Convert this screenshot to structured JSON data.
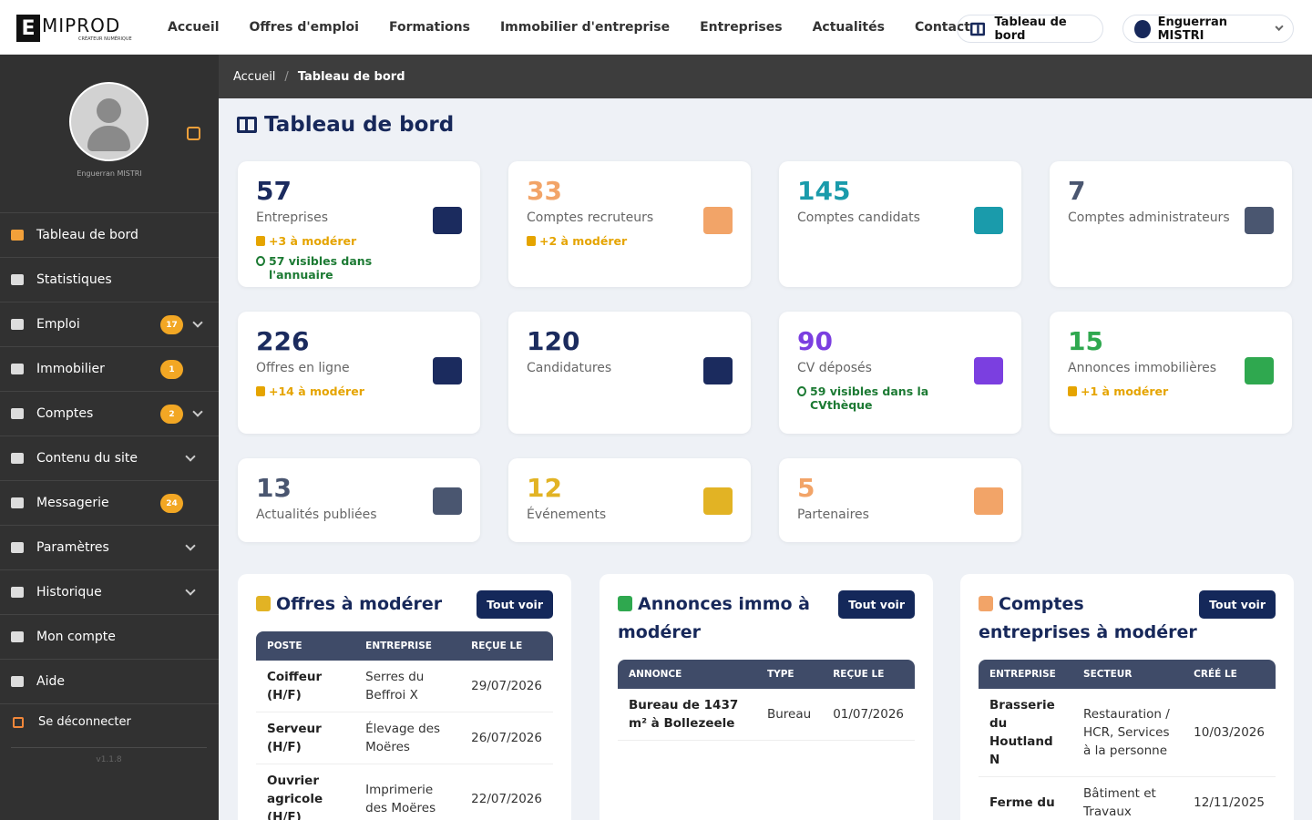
{
  "header": {
    "logo": {
      "letter": "E",
      "rest": "MIPROD",
      "tagline": "CRÉATEUR NUMÉRIQUE"
    },
    "nav": [
      "Accueil",
      "Offres d'emploi",
      "Formations",
      "Immobilier d'entreprise",
      "Entreprises",
      "Actualités",
      "Contact"
    ],
    "dashboard_button": "Tableau de bord",
    "user": "Enguerran MISTRI"
  },
  "sidebar": {
    "user_name": "Enguerran MISTRI",
    "menu": [
      {
        "label": "Tableau de bord",
        "active": true
      },
      {
        "label": "Statistiques"
      },
      {
        "label": "Emploi",
        "badge": 17,
        "expandable": true
      },
      {
        "label": "Immobilier",
        "badge": 1
      },
      {
        "label": "Comptes",
        "badge": 2,
        "expandable": true
      },
      {
        "label": "Contenu du site",
        "expandable": true
      },
      {
        "label": "Messagerie",
        "badge": 24
      },
      {
        "label": "Paramètres",
        "expandable": true
      },
      {
        "label": "Historique",
        "expandable": true
      },
      {
        "label": "Mon compte"
      },
      {
        "label": "Aide"
      }
    ],
    "logout": "Se déconnecter",
    "version": "v1.1.8"
  },
  "breadcrumb": [
    "Accueil",
    "Tableau de bord"
  ],
  "page_title": "Tableau de bord",
  "stats": [
    {
      "value": 57,
      "label": "Entreprises",
      "color": "#1b2b5e",
      "notes": [
        {
          "text": "+3 à modérer",
          "kind": "pending"
        },
        {
          "text": "57 visibles dans l'annuaire",
          "kind": "visible"
        }
      ]
    },
    {
      "value": 33,
      "label": "Comptes recruteurs",
      "color": "#f2a468",
      "notes": [
        {
          "text": "+2 à modérer",
          "kind": "pending"
        }
      ]
    },
    {
      "value": 145,
      "label": "Comptes candidats",
      "color": "#1a9bab",
      "notes": []
    },
    {
      "value": 7,
      "label": "Comptes administrateurs",
      "color": "#4a5670",
      "notes": []
    },
    {
      "value": 226,
      "label": "Offres en ligne",
      "color": "#1b2b5e",
      "notes": [
        {
          "text": "+14 à modérer",
          "kind": "pending"
        }
      ]
    },
    {
      "value": 120,
      "label": "Candidatures",
      "color": "#1b2b5e",
      "notes": []
    },
    {
      "value": 90,
      "label": "CV déposés",
      "color": "#7b3fe0",
      "notes": [
        {
          "text": "59 visibles dans la CVthèque",
          "kind": "visible"
        }
      ]
    },
    {
      "value": 15,
      "label": "Annonces immobilières",
      "color": "#2fa84f",
      "notes": [
        {
          "text": "+1 à modérer",
          "kind": "pending"
        }
      ]
    },
    {
      "value": 13,
      "label": "Actualités publiées",
      "color": "#4a5670",
      "notes": []
    },
    {
      "value": 12,
      "label": "Événements",
      "color": "#e2b324",
      "notes": []
    },
    {
      "value": 5,
      "label": "Partenaires",
      "color": "#f2a468",
      "notes": []
    }
  ],
  "panels": [
    {
      "title": "Offres à modérer",
      "button": "Tout voir",
      "color": "#e2b324",
      "columns": [
        "POSTE",
        "ENTREPRISE",
        "REÇUE LE"
      ],
      "rows": [
        [
          "Coiffeur (H/F)",
          "Serres du Beffroi X",
          "29/07/2026"
        ],
        [
          "Serveur (H/F)",
          "Élevage des Moëres",
          "26/07/2026"
        ],
        [
          "Ouvrier agricole (H/F)",
          "Imprimerie des Moëres",
          "22/07/2026"
        ]
      ]
    },
    {
      "title": "Annonces immo à modérer",
      "button": "Tout voir",
      "color": "#2fa84f",
      "columns": [
        "ANNONCE",
        "TYPE",
        "REÇUE LE"
      ],
      "rows": [
        [
          "Bureau de 1437 m² à Bollezeele",
          "Bureau",
          "01/07/2026"
        ]
      ]
    },
    {
      "title": "Comptes entreprises à modérer",
      "button": "Tout voir",
      "color": "#f2a468",
      "columns": [
        "ENTREPRISE",
        "SECTEUR",
        "CRÉÉ LE"
      ],
      "rows": [
        [
          "Brasserie du Houtland N",
          "Restauration / HCR, Services à la personne",
          "10/03/2026"
        ],
        [
          "Ferme du",
          "Bâtiment et Travaux",
          "12/11/2025"
        ]
      ]
    }
  ]
}
